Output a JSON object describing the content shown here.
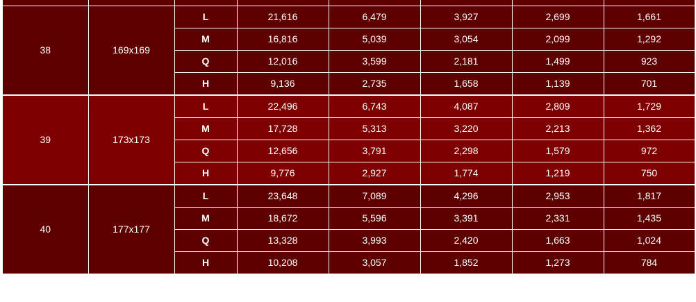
{
  "colors": {
    "dark_row": "#5f0000",
    "light_row": "#7e0000",
    "text": "#ffffff",
    "border": "#ffffff"
  },
  "groups": [
    {
      "version": "38",
      "size": "169x169",
      "rows": [
        {
          "ecl": "L",
          "values": [
            "21,616",
            "6,479",
            "3,927",
            "2,699",
            "1,661"
          ]
        },
        {
          "ecl": "M",
          "values": [
            "16,816",
            "5,039",
            "3,054",
            "2,099",
            "1,292"
          ]
        },
        {
          "ecl": "Q",
          "values": [
            "12,016",
            "3,599",
            "2,181",
            "1,499",
            "923"
          ]
        },
        {
          "ecl": "H",
          "values": [
            "9,136",
            "2,735",
            "1,658",
            "1,139",
            "701"
          ]
        }
      ]
    },
    {
      "version": "39",
      "size": "173x173",
      "rows": [
        {
          "ecl": "L",
          "values": [
            "22,496",
            "6,743",
            "4,087",
            "2,809",
            "1,729"
          ]
        },
        {
          "ecl": "M",
          "values": [
            "17,728",
            "5,313",
            "3,220",
            "2,213",
            "1,362"
          ]
        },
        {
          "ecl": "Q",
          "values": [
            "12,656",
            "3,791",
            "2,298",
            "1,579",
            "972"
          ]
        },
        {
          "ecl": "H",
          "values": [
            "9,776",
            "2,927",
            "1,774",
            "1,219",
            "750"
          ]
        }
      ]
    },
    {
      "version": "40",
      "size": "177x177",
      "rows": [
        {
          "ecl": "L",
          "values": [
            "23,648",
            "7,089",
            "4,296",
            "2,953",
            "1,817"
          ]
        },
        {
          "ecl": "M",
          "values": [
            "18,672",
            "5,596",
            "3,391",
            "2,331",
            "1,435"
          ]
        },
        {
          "ecl": "Q",
          "values": [
            "13,328",
            "3,993",
            "2,420",
            "1,663",
            "1,024"
          ]
        },
        {
          "ecl": "H",
          "values": [
            "10,208",
            "3,057",
            "1,852",
            "1,273",
            "784"
          ]
        }
      ]
    }
  ]
}
